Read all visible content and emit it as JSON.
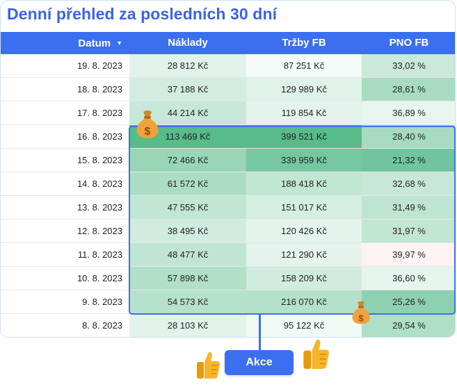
{
  "title": "Denní přehled za posledních 30 dní",
  "columns": {
    "datum": "Datum",
    "naklady": "Náklady",
    "trzby": "Tržby FB",
    "pno": "PNO FB"
  },
  "rows": [
    {
      "datum": "19. 8. 2023",
      "naklady": "28 812 Kč",
      "trzby": "87 251 Kč",
      "pno": "33,02 %"
    },
    {
      "datum": "18. 8. 2023",
      "naklady": "37 188 Kč",
      "trzby": "129 989 Kč",
      "pno": "28,61 %"
    },
    {
      "datum": "17. 8. 2023",
      "naklady": "44 214 Kč",
      "trzby": "119 854 Kč",
      "pno": "36,89 %"
    },
    {
      "datum": "16. 8. 2023",
      "naklady": "113 469 Kč",
      "trzby": "399 521 Kč",
      "pno": "28,40 %"
    },
    {
      "datum": "15. 8. 2023",
      "naklady": "72 466 Kč",
      "trzby": "339 959 Kč",
      "pno": "21,32 %"
    },
    {
      "datum": "14. 8. 2023",
      "naklady": "61 572 Kč",
      "trzby": "188 418 Kč",
      "pno": "32,68 %"
    },
    {
      "datum": "13. 8. 2023",
      "naklady": "47 555 Kč",
      "trzby": "151 017 Kč",
      "pno": "31,49 %"
    },
    {
      "datum": "12. 8. 2023",
      "naklady": "38 495 Kč",
      "trzby": "120 426 Kč",
      "pno": "31,97 %"
    },
    {
      "datum": "11. 8. 2023",
      "naklady": "48 477 Kč",
      "trzby": "121 290 Kč",
      "pno": "39,97 %"
    },
    {
      "datum": "10. 8. 2023",
      "naklady": "57 898 Kč",
      "trzby": "158 209 Kč",
      "pno": "36,60 %"
    },
    {
      "datum": "9. 8. 2023",
      "naklady": "54 573 Kč",
      "trzby": "216 070 Kč",
      "pno": "25,26 %"
    },
    {
      "datum": "8. 8. 2023",
      "naklady": "28 103 Kč",
      "trzby": "95 122 Kč",
      "pno": "29,54 %"
    }
  ],
  "action_button": "Akce",
  "colors": {
    "accent": "#3b6ff0",
    "title": "#3a63e6",
    "heat_high": "#57bb8a",
    "heat_low": "#ffffff",
    "heat_neg": "#fdf3f3"
  }
}
